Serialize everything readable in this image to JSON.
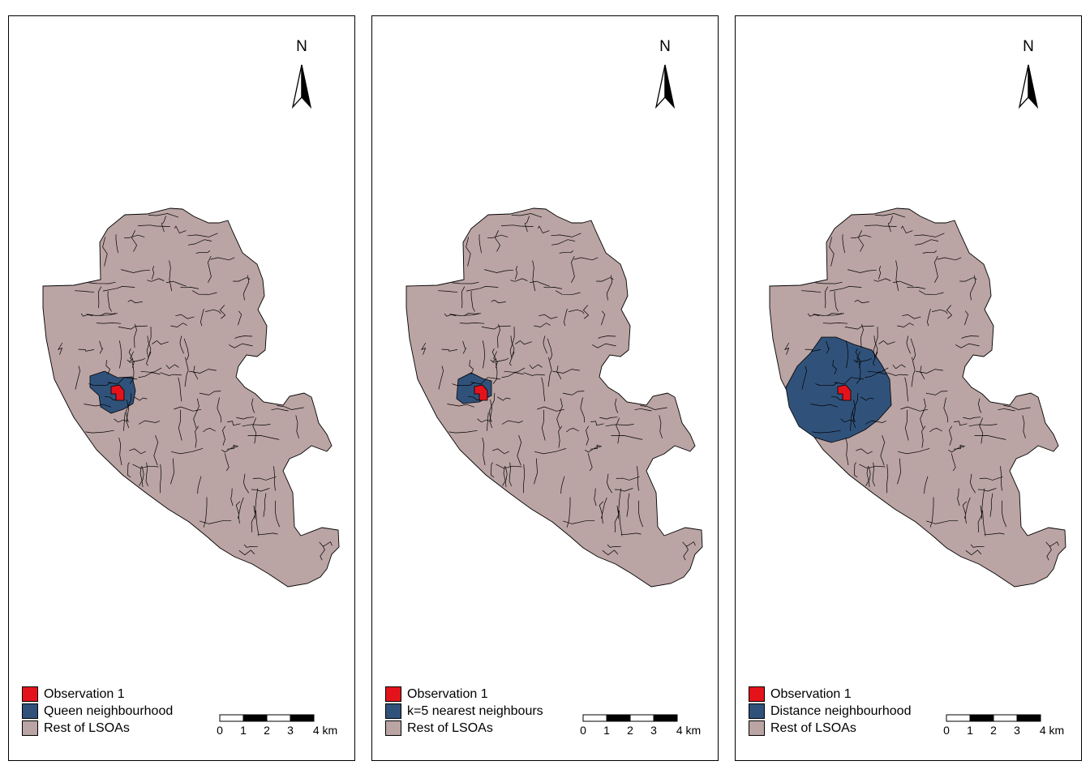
{
  "maps": [
    {
      "legend": [
        {
          "label": "Observation 1",
          "color": "#e4131b"
        },
        {
          "label": "Queen neighbourhood",
          "color": "#30527a"
        },
        {
          "label": "Rest of LSOAs",
          "color": "#bba4a4"
        }
      ],
      "neighbourhood": "queen"
    },
    {
      "legend": [
        {
          "label": "Observation 1",
          "color": "#e4131b"
        },
        {
          "label": "k=5 nearest neighbours",
          "color": "#30527a"
        },
        {
          "label": "Rest of LSOAs",
          "color": "#bba4a4"
        }
      ],
      "neighbourhood": "knn"
    },
    {
      "legend": [
        {
          "label": "Observation 1",
          "color": "#e4131b"
        },
        {
          "label": "Distance neighbourhood",
          "color": "#30527a"
        },
        {
          "label": "Rest of LSOAs",
          "color": "#bba4a4"
        }
      ],
      "neighbourhood": "distance"
    }
  ],
  "north_label": "N",
  "scale_bar": {
    "ticks": [
      "0",
      "1",
      "2",
      "3",
      "4 km"
    ]
  }
}
